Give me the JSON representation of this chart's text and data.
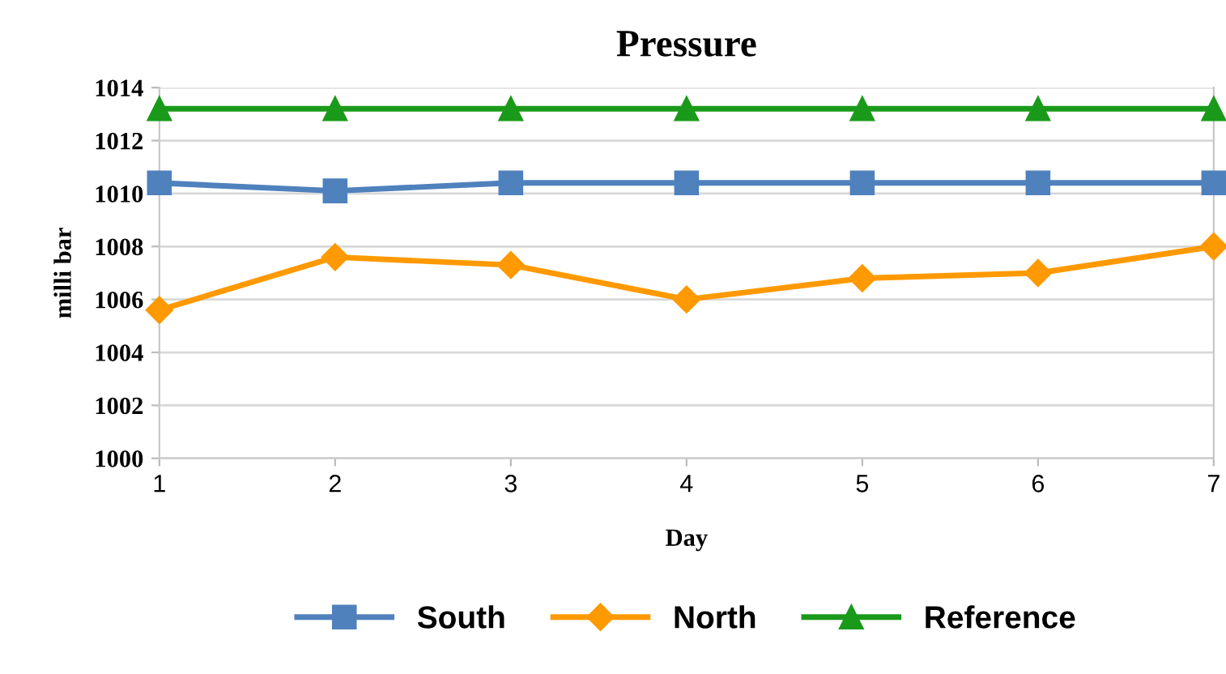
{
  "chart_data": {
    "type": "line",
    "title": "Pressure",
    "xlabel": "Day",
    "ylabel": "milli bar",
    "x": [
      1,
      2,
      3,
      4,
      5,
      6,
      7
    ],
    "series": [
      {
        "name": "South",
        "color": "#4f81bd",
        "marker": "square",
        "values": [
          1010.4,
          1010.1,
          1010.4,
          1010.4,
          1010.4,
          1010.4,
          1010.4
        ]
      },
      {
        "name": "North",
        "color": "#ff9900",
        "marker": "diamond",
        "values": [
          1005.6,
          1007.6,
          1007.3,
          1006.0,
          1006.8,
          1007.0,
          1008.0
        ]
      },
      {
        "name": "Reference",
        "color": "#1a9a1a",
        "marker": "triangle",
        "values": [
          1013.2,
          1013.2,
          1013.2,
          1013.2,
          1013.2,
          1013.2,
          1013.2
        ]
      }
    ],
    "xlim": [
      1,
      7
    ],
    "xticks": [
      1,
      2,
      3,
      4,
      5,
      6,
      7
    ],
    "ylim": [
      1000,
      1014
    ],
    "yticks": [
      1000,
      1002,
      1004,
      1006,
      1008,
      1010,
      1012,
      1014
    ],
    "grid": "y",
    "legend": "bottom",
    "line_style": "solid"
  }
}
